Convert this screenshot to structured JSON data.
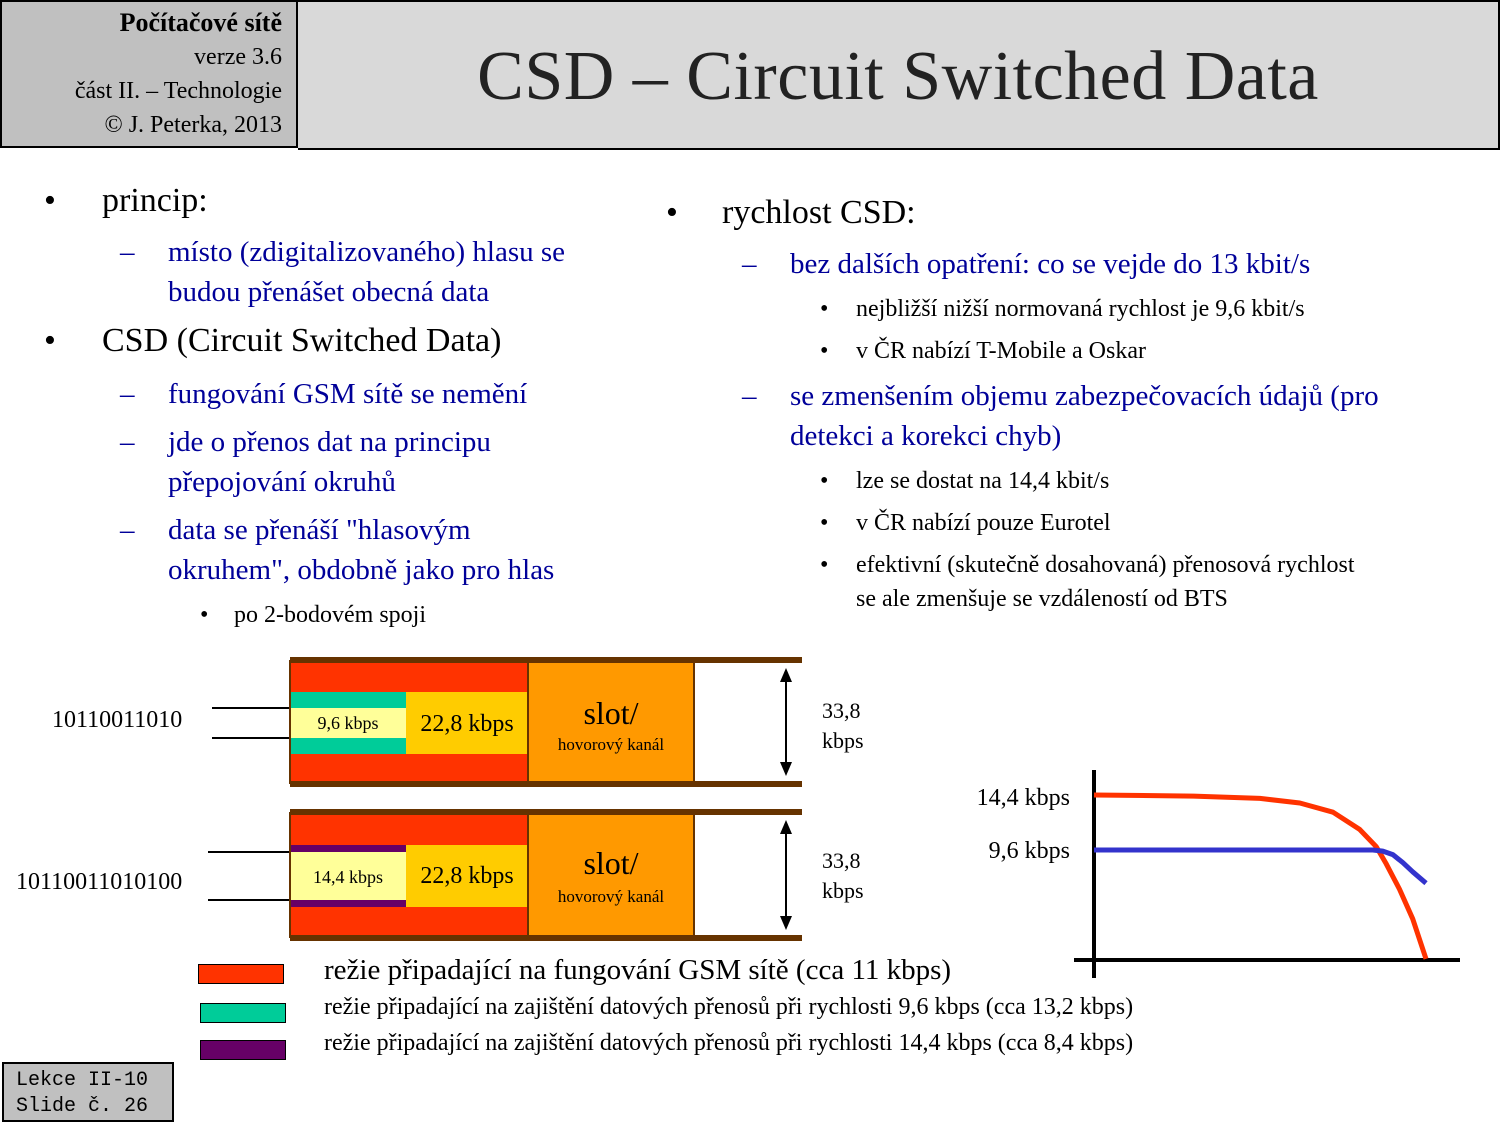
{
  "header": {
    "course": "Počítačové sítě",
    "version": "verze 3.6",
    "part": "část  II. –  Technologie",
    "copyright": "© J. Peterka, 2013",
    "title": "CSD – Circuit Switched Data"
  },
  "left_column": {
    "b1": "princip:",
    "b1_d1_line1": "místo (zdigitalizovaného) hlasu se",
    "b1_d1_line2": "budou přenášet obecná data",
    "b2": "CSD (Circuit Switched Data)",
    "b2_d1": "fungování  GSM sítě se nemění",
    "b2_d2_line1": "jde o přenos  dat na principu",
    "b2_d2_line2": "přepojování  okruhů",
    "b2_d3_line1": "data se přenáší \"hlasovým",
    "b2_d3_line2": "okruhem\", obdobně  jako pro hlas",
    "b2_d3_s1": "po 2-bodovém  spoji"
  },
  "right_column": {
    "b1": "rychlost CSD:",
    "d1": "bez dalších opatření: co se vejde do 13 kbit/s",
    "d1_s1": "nejbližší  nižší normovaná  rychlost  je 9,6 kbit/s",
    "d1_s2": "v ČR nabízí T-Mobile a Oskar",
    "d2_line1": "se zmenšením objemu zabezpečovacích údajů (pro",
    "d2_line2": "detekci a korekci chyb)",
    "d2_s1": "lze se dostat na 14,4 kbit/s",
    "d2_s2": "v ČR nabízí  pouze Eurotel",
    "d2_s3_line1": "efektivní (skutečně dosahovaná) přenosová rychlost",
    "d2_s3_line2": "se ale zmenšuje se vzdáleností od BTS"
  },
  "bullets": {
    "dot": "•",
    "dash": "–"
  },
  "diagram": {
    "row1": {
      "bits": "10110011010",
      "inner": "9,6 kbps",
      "mid": "22,8 kbps",
      "slot": "slot/",
      "slot_sub": "hovorový kanál",
      "capacity_line1": "33,8",
      "capacity_line2": "kbps"
    },
    "row2": {
      "bits": "10110011010100",
      "inner": "14,4 kbps",
      "mid": "22,8 kbps",
      "slot": "slot/",
      "slot_sub": "hovorový kanál",
      "capacity_line1": "33,8",
      "capacity_line2": "kbps"
    },
    "colors": {
      "gsm_overhead": "#ff3300",
      "overhead_96": "#00cc99",
      "overhead_144": "#660066",
      "data": "#ffff99",
      "channel": "#ffcc00",
      "slot": "#ff9900",
      "border": "#663300"
    }
  },
  "chart_data": {
    "type": "line",
    "title": "",
    "xlabel": "",
    "ylabel": "",
    "y_tick_labels": [
      "14,4 kbps",
      "9,6 kbps"
    ],
    "series": [
      {
        "color": "#ff3300",
        "x": [
          0,
          0.3,
          0.5,
          0.62,
          0.72,
          0.8,
          0.85,
          0.88,
          0.92,
          0.96,
          1.0
        ],
        "y": [
          14.4,
          14.3,
          14.1,
          13.7,
          12.9,
          11.4,
          9.9,
          8.4,
          6.2,
          3.6,
          0.1
        ]
      },
      {
        "color": "#3333cc",
        "x": [
          0,
          0.3,
          0.5,
          0.7,
          0.8,
          0.84,
          0.87,
          0.9,
          0.93,
          0.96,
          1.0
        ],
        "y": [
          9.6,
          9.6,
          9.6,
          9.6,
          9.6,
          9.6,
          9.5,
          9.2,
          8.5,
          7.7,
          6.7
        ]
      }
    ]
  },
  "legend": [
    {
      "color": "#ff3300",
      "text": "režie připadající  na fungování  GSM sítě (cca 11 kbps)"
    },
    {
      "color": "#00cc99",
      "text": "režie připadající  na zajištění  datových  přenosů  při rychlosti  9,6 kbps (cca 13,2 kbps)"
    },
    {
      "color": "#660066",
      "text": "režie připadající  na zajištění  datových  přenosů  při rychlosti  14,4 kbps (cca 8,4 kbps)"
    }
  ],
  "footer": {
    "line1": "Lekce II-10",
    "line2": "Slide č. 26"
  }
}
